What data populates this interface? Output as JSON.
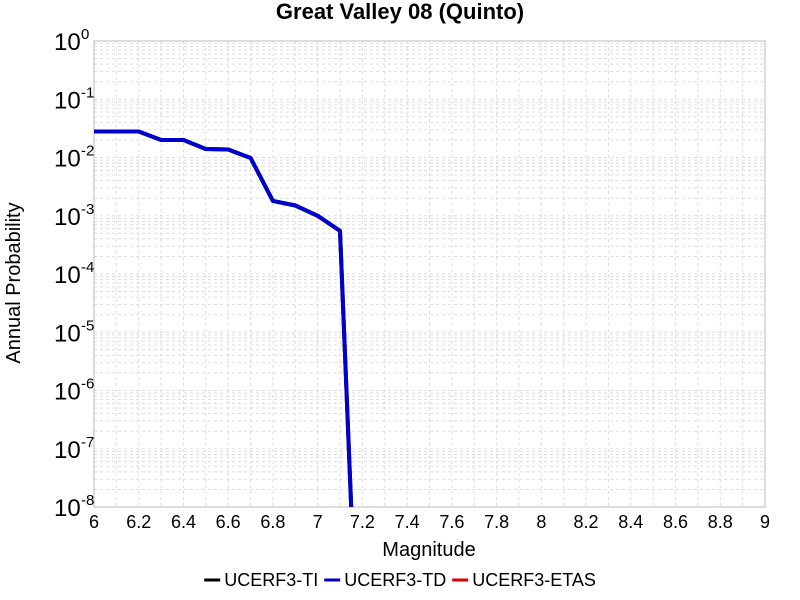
{
  "chart_data": {
    "type": "line",
    "title": "Great Valley 08 (Quinto)",
    "xlabel": "Magnitude",
    "ylabel": "Annual Probability",
    "xlim": [
      6,
      9
    ],
    "ylim": [
      1e-08,
      1
    ],
    "yscale": "log",
    "grid": true,
    "legend_position": "bottom",
    "x_ticks": [
      "6",
      "6.2",
      "6.4",
      "6.6",
      "6.8",
      "7",
      "7.2",
      "7.4",
      "7.6",
      "7.8",
      "8",
      "8.2",
      "8.4",
      "8.6",
      "8.8",
      "9"
    ],
    "y_ticks": [
      {
        "base": "10",
        "exp": "0"
      },
      {
        "base": "10",
        "exp": "-1"
      },
      {
        "base": "10",
        "exp": "-2"
      },
      {
        "base": "10",
        "exp": "-3"
      },
      {
        "base": "10",
        "exp": "-4"
      },
      {
        "base": "10",
        "exp": "-5"
      },
      {
        "base": "10",
        "exp": "-6"
      },
      {
        "base": "10",
        "exp": "-7"
      },
      {
        "base": "10",
        "exp": "-8"
      }
    ],
    "series": [
      {
        "name": "UCERF3-TI",
        "color": "#000000",
        "x": [
          6.0,
          6.1,
          6.2,
          6.3,
          6.4,
          6.5,
          6.6,
          6.7,
          6.8,
          6.9,
          7.0,
          7.1,
          7.15
        ],
        "y": [
          0.028,
          0.028,
          0.028,
          0.02,
          0.02,
          0.014,
          0.0137,
          0.0098,
          0.0018,
          0.0015,
          0.001,
          0.00055,
          1e-08
        ]
      },
      {
        "name": "UCERF3-TD",
        "color": "#0000cc",
        "x": [
          6.0,
          6.1,
          6.2,
          6.3,
          6.4,
          6.5,
          6.6,
          6.7,
          6.8,
          6.9,
          7.0,
          7.1,
          7.15
        ],
        "y": [
          0.028,
          0.028,
          0.028,
          0.02,
          0.02,
          0.014,
          0.0137,
          0.0098,
          0.0018,
          0.0015,
          0.001,
          0.00055,
          1e-08
        ]
      },
      {
        "name": "UCERF3-ETAS",
        "color": "#dd0000",
        "x": [],
        "y": []
      }
    ]
  }
}
